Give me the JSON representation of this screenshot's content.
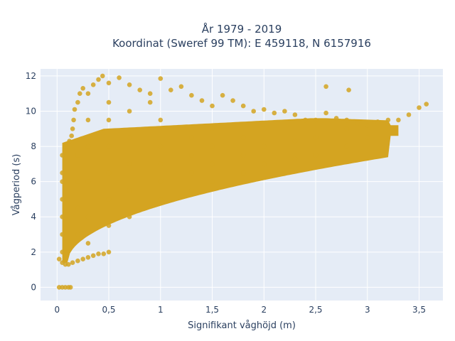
{
  "chart_data": {
    "type": "scatter",
    "title_line1": "År 1979 - 2019",
    "title_line2": "Koordinat (Sweref 99 TM): E 459118, N 6157916",
    "xlabel": "Signifikant våghöjd (m)",
    "ylabel": "Vågperiod (s)",
    "xlim": [
      -0.16,
      3.73
    ],
    "ylim": [
      -0.75,
      12.4
    ],
    "x_ticks": [
      0,
      0.5,
      1,
      1.5,
      2,
      2.5,
      3,
      3.5
    ],
    "x_tick_labels": [
      "0",
      "0,5",
      "1",
      "1,5",
      "2",
      "2,5",
      "3",
      "3,5"
    ],
    "y_ticks": [
      0,
      2,
      4,
      6,
      8,
      10,
      12
    ],
    "y_tick_labels": [
      "0",
      "2",
      "4",
      "6",
      "8",
      "10",
      "12"
    ],
    "grid": true,
    "marker_color": "#d4a421",
    "background_color": "#e5ecf6",
    "points": [
      [
        0.02,
        0
      ],
      [
        0.05,
        0
      ],
      [
        0.08,
        0
      ],
      [
        0.11,
        0
      ],
      [
        0.13,
        0
      ],
      [
        0.02,
        1.6
      ],
      [
        0.05,
        1.4
      ],
      [
        0.08,
        1.3
      ],
      [
        0.11,
        1.3
      ],
      [
        0.15,
        1.4
      ],
      [
        0.2,
        1.5
      ],
      [
        0.25,
        1.6
      ],
      [
        0.3,
        1.7
      ],
      [
        0.35,
        1.8
      ],
      [
        0.4,
        1.9
      ],
      [
        0.45,
        1.9
      ],
      [
        0.5,
        2.0
      ],
      [
        0.05,
        2.0
      ],
      [
        0.05,
        3.0
      ],
      [
        0.05,
        4.0
      ],
      [
        0.05,
        5.0
      ],
      [
        0.05,
        6.0
      ],
      [
        0.05,
        6.5
      ],
      [
        0.05,
        7.5
      ],
      [
        0.08,
        8.0
      ],
      [
        0.12,
        8.3
      ],
      [
        0.14,
        8.6
      ],
      [
        0.15,
        9.0
      ],
      [
        0.16,
        9.5
      ],
      [
        0.17,
        10.1
      ],
      [
        0.2,
        10.5
      ],
      [
        0.22,
        11.0
      ],
      [
        0.25,
        11.3
      ],
      [
        0.3,
        11.0
      ],
      [
        0.35,
        11.5
      ],
      [
        0.4,
        11.8
      ],
      [
        0.44,
        12.0
      ],
      [
        0.5,
        11.6
      ],
      [
        0.6,
        11.9
      ],
      [
        0.7,
        11.5
      ],
      [
        0.8,
        11.2
      ],
      [
        0.9,
        11.0
      ],
      [
        0.9,
        10.5
      ],
      [
        1.0,
        11.85
      ],
      [
        1.1,
        11.2
      ],
      [
        1.2,
        11.4
      ],
      [
        1.3,
        10.9
      ],
      [
        1.4,
        10.6
      ],
      [
        1.5,
        10.3
      ],
      [
        1.6,
        10.9
      ],
      [
        1.7,
        10.6
      ],
      [
        1.8,
        10.3
      ],
      [
        1.9,
        10.0
      ],
      [
        2.0,
        10.1
      ],
      [
        2.1,
        9.9
      ],
      [
        2.2,
        10.0
      ],
      [
        2.3,
        9.8
      ],
      [
        2.4,
        9.5
      ],
      [
        2.5,
        9.5
      ],
      [
        2.6,
        9.9
      ],
      [
        2.7,
        9.6
      ],
      [
        2.8,
        9.5
      ],
      [
        2.82,
        11.2
      ],
      [
        2.6,
        11.4
      ],
      [
        2.9,
        9.3
      ],
      [
        3.0,
        9.2
      ],
      [
        3.1,
        9.4
      ],
      [
        3.2,
        9.5
      ],
      [
        3.3,
        9.5
      ],
      [
        3.4,
        9.8
      ],
      [
        3.5,
        10.2
      ],
      [
        3.57,
        10.4
      ],
      [
        0.1,
        5.0
      ],
      [
        0.2,
        3.0
      ],
      [
        0.2,
        4.5
      ],
      [
        0.2,
        6.0
      ],
      [
        0.2,
        7.5
      ],
      [
        0.3,
        2.5
      ],
      [
        0.3,
        4.0
      ],
      [
        0.3,
        6.0
      ],
      [
        0.3,
        8.0
      ],
      [
        0.3,
        9.5
      ],
      [
        0.5,
        3.5
      ],
      [
        0.5,
        5.0
      ],
      [
        0.5,
        6.5
      ],
      [
        0.5,
        8.0
      ],
      [
        0.5,
        9.5
      ],
      [
        0.5,
        10.5
      ],
      [
        0.7,
        4.0
      ],
      [
        0.7,
        5.5
      ],
      [
        0.7,
        7.0
      ],
      [
        0.7,
        8.5
      ],
      [
        0.7,
        10.0
      ],
      [
        1.0,
        5.0
      ],
      [
        1.0,
        6.0
      ],
      [
        1.0,
        7.0
      ],
      [
        1.0,
        8.0
      ],
      [
        1.0,
        9.5
      ],
      [
        1.3,
        5.5
      ],
      [
        1.3,
        6.5
      ],
      [
        1.3,
        7.5
      ],
      [
        1.3,
        8.5
      ],
      [
        1.5,
        6.0
      ],
      [
        1.5,
        7.0
      ],
      [
        1.5,
        8.0
      ],
      [
        1.5,
        9.0
      ],
      [
        1.8,
        6.5
      ],
      [
        1.8,
        7.5
      ],
      [
        1.8,
        8.5
      ],
      [
        2.0,
        7.0
      ],
      [
        2.0,
        8.0
      ],
      [
        2.0,
        9.0
      ],
      [
        2.3,
        7.3
      ],
      [
        2.3,
        8.3
      ],
      [
        2.5,
        7.5
      ],
      [
        2.5,
        8.5
      ],
      [
        2.8,
        8.0
      ],
      [
        2.8,
        9.0
      ],
      [
        3.0,
        8.5
      ]
    ]
  }
}
